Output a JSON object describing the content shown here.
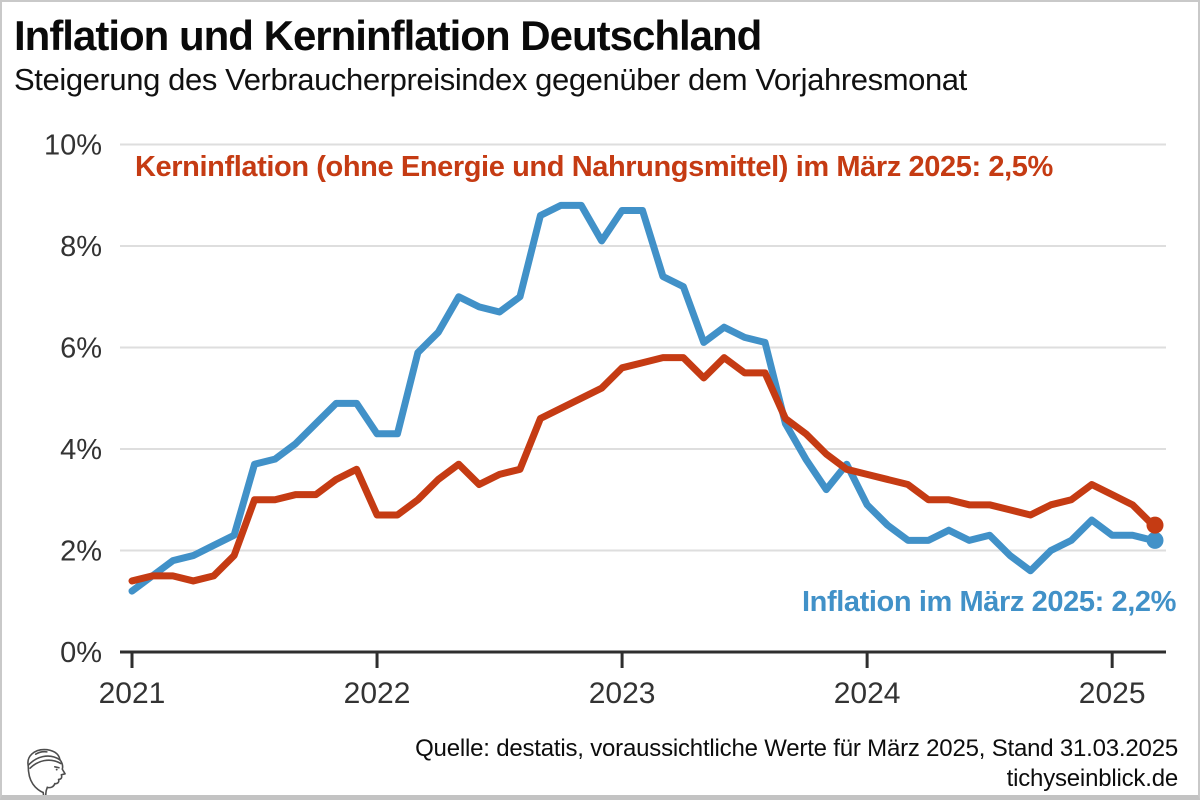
{
  "header": {
    "title": "Inflation und Kerninflation Deutschland",
    "subtitle": "Steigerung des Verbraucherpreisindex gegenüber dem Vorjahresmonat"
  },
  "annotations": {
    "kerninflation": "Kerninflation (ohne Energie und Nahrungsmittel) im März 2025: 2,5%",
    "inflation": "Inflation im März 2025: 2,2%"
  },
  "footer": {
    "source": "Quelle: destatis, voraussichtliche Werte für März 2025, Stand 31.03.2025",
    "site": "tichyseinblick.de"
  },
  "colors": {
    "inflation_blue": "#4191c8",
    "kerninflation_red": "#c53b13",
    "gridline": "#dedede",
    "axis": "#2e2e2e",
    "tick_label": "#333333"
  },
  "chart_data": {
    "type": "line",
    "title": "Inflation und Kerninflation Deutschland",
    "subtitle": "Steigerung des Verbraucherpreisindex gegenüber dem Vorjahresmonat",
    "xlabel": "",
    "ylabel": "",
    "ylim": [
      0,
      10
    ],
    "grid": "horizontal-only",
    "legend": "inline-annotations",
    "x_ticks": [
      "2021",
      "2022",
      "2023",
      "2024",
      "2025"
    ],
    "yticks": [
      "0%",
      "2%",
      "4%",
      "6%",
      "8%",
      "10%"
    ],
    "x_unit": "month",
    "x_start": "2021-01",
    "x_end": "2025-03",
    "series": [
      {
        "id": "inflation",
        "name": "Inflation",
        "color": "#4191c8",
        "end_label": "Inflation im März 2025: 2,2%",
        "end_value": 2.2,
        "values": [
          1.2,
          1.5,
          1.8,
          1.9,
          2.1,
          2.3,
          3.7,
          3.8,
          4.1,
          4.5,
          4.9,
          4.9,
          4.3,
          4.3,
          5.9,
          6.3,
          7.0,
          6.8,
          6.7,
          7.0,
          8.6,
          8.8,
          8.8,
          8.1,
          8.7,
          8.7,
          7.4,
          7.2,
          6.1,
          6.4,
          6.2,
          6.1,
          4.5,
          3.8,
          3.2,
          3.7,
          2.9,
          2.5,
          2.2,
          2.2,
          2.4,
          2.2,
          2.3,
          1.9,
          1.6,
          2.0,
          2.2,
          2.6,
          2.3,
          2.3,
          2.2
        ]
      },
      {
        "id": "kerninflation",
        "name": "Kerninflation (ohne Energie und Nahrungsmittel)",
        "color": "#c53b13",
        "end_label": "Kerninflation (ohne Energie und Nahrungsmittel) im März 2025: 2,5%",
        "end_value": 2.5,
        "values": [
          1.4,
          1.5,
          1.5,
          1.4,
          1.5,
          1.9,
          3.0,
          3.0,
          3.1,
          3.1,
          3.4,
          3.6,
          2.7,
          2.7,
          3.0,
          3.4,
          3.7,
          3.3,
          3.5,
          3.6,
          4.6,
          4.8,
          5.0,
          5.2,
          5.6,
          5.7,
          5.8,
          5.8,
          5.4,
          5.8,
          5.5,
          5.5,
          4.6,
          4.3,
          3.9,
          3.6,
          3.5,
          3.4,
          3.3,
          3.0,
          3.0,
          2.9,
          2.9,
          2.8,
          2.7,
          2.9,
          3.0,
          3.3,
          3.1,
          2.9,
          2.5
        ]
      }
    ]
  }
}
